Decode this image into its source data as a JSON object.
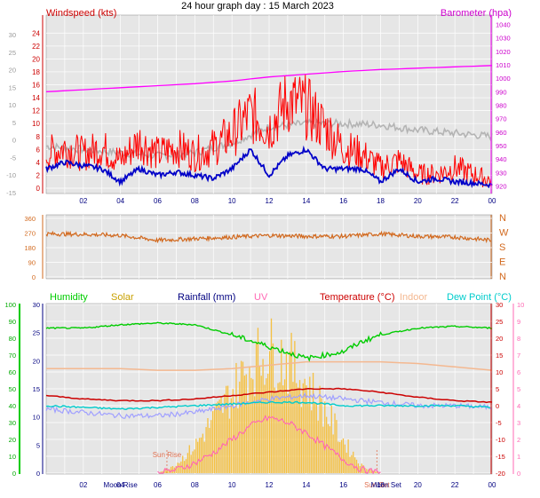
{
  "title": "24 hour graph day : 15 March 2023",
  "colors": {
    "plot_bg": "#e6e6e6",
    "grid": "#ffffff",
    "windspeed": "#ff0000",
    "wind_avg": "#0000c8",
    "gust_grey": "#b4b4b4",
    "barometer": "#ff00ff",
    "direction": "#d2691e",
    "humidity": "#00cc00",
    "solar": "#e6b400",
    "rainfall": "#000080",
    "uv": "#ff69b4",
    "temperature": "#cc0000",
    "indoor": "#f4b890",
    "dewpoint": "#00cccc",
    "lavender": "#a0a0ff"
  },
  "time_labels": [
    "02",
    "04",
    "06",
    "08",
    "10",
    "12",
    "14",
    "16",
    "18",
    "20",
    "22",
    "00"
  ],
  "chart_data": [
    {
      "type": "line",
      "panel": "wind-barometer",
      "ylabel_left": "Windspeed (kts)",
      "ylabel_right": "Barometer (hpa)",
      "left_ticks": [
        "24",
        "22",
        "20",
        "18",
        "16",
        "14",
        "12",
        "10",
        "8",
        "6",
        "4",
        "2",
        "0"
      ],
      "left_inner_ticks": [
        "30",
        "25",
        "20",
        "15",
        "10",
        "5",
        "0",
        "-5",
        "-10",
        "-15"
      ],
      "right_ticks": [
        "1040",
        "1030",
        "1020",
        "1010",
        "1000",
        "990",
        "980",
        "970",
        "960",
        "950",
        "940",
        "930",
        "920"
      ],
      "ylim_left": [
        0,
        25
      ],
      "ylim_right": [
        915,
        1045
      ],
      "series": [
        {
          "key": "barometer",
          "x": [
            0,
            2,
            4,
            6,
            8,
            10,
            12,
            14,
            16,
            18,
            20,
            22,
            24
          ],
          "y": [
            990,
            991.5,
            993,
            994.5,
            996,
            998,
            1001,
            1003,
            1005,
            1006.5,
            1007.5,
            1008.5,
            1009.5
          ]
        },
        {
          "key": "gust",
          "x": [
            0,
            2,
            4,
            6,
            8,
            10,
            12,
            14,
            16,
            18,
            20,
            22,
            24
          ],
          "y": [
            6.5,
            6,
            5.5,
            5,
            5.5,
            7,
            9.5,
            10,
            10,
            9.8,
            9,
            8.5,
            8
          ]
        },
        {
          "key": "windspeed",
          "x": [
            0,
            1,
            2,
            3,
            4,
            5,
            6,
            7,
            8,
            9,
            10,
            11,
            12,
            13,
            14,
            15,
            16,
            17,
            18,
            19,
            20,
            21,
            22,
            23,
            24
          ],
          "y": [
            5,
            6,
            5,
            6,
            4,
            7,
            5,
            6,
            5,
            6,
            8,
            11,
            9,
            13,
            12,
            9,
            6,
            5,
            3,
            4,
            2,
            2,
            3,
            2,
            1
          ]
        },
        {
          "key": "wind_avg",
          "x": [
            0,
            1,
            2,
            3,
            4,
            5,
            6,
            7,
            8,
            9,
            10,
            11,
            12,
            13,
            14,
            15,
            16,
            17,
            18,
            19,
            20,
            21,
            22,
            23,
            24
          ],
          "y": [
            3,
            4,
            3.5,
            3,
            1,
            3,
            2,
            2.5,
            2,
            1.5,
            3,
            6,
            2,
            5,
            6,
            3,
            3,
            3,
            1,
            3,
            1,
            1.5,
            1,
            0.8,
            0.5
          ]
        }
      ]
    },
    {
      "type": "scatter",
      "panel": "wind-direction",
      "left_ticks": [
        "360",
        "270",
        "180",
        "90",
        "0"
      ],
      "right_ticks": [
        "N",
        "W",
        "S",
        "E",
        "N"
      ],
      "ylim": [
        0,
        360
      ],
      "series": [
        {
          "key": "direction",
          "x": [
            0,
            2,
            4,
            6,
            8,
            10,
            12,
            14,
            16,
            18,
            20,
            22,
            24
          ],
          "y": [
            265,
            262,
            255,
            225,
            235,
            245,
            255,
            250,
            250,
            265,
            250,
            245,
            225
          ]
        }
      ]
    },
    {
      "type": "line",
      "panel": "multi",
      "legend": [
        "Humidity",
        "Solar",
        "Rainfall (mm)",
        "UV",
        "Temperature (°C)",
        "Indoor",
        "Dew Point (°C)"
      ],
      "left_humidity_ticks": [
        "100",
        "90",
        "80",
        "70",
        "60",
        "50",
        "40",
        "30",
        "20",
        "10",
        "0"
      ],
      "left_rain_ticks": [
        "30",
        "25",
        "20",
        "15",
        "10",
        "5",
        "0"
      ],
      "right_temp_ticks": [
        "30",
        "25",
        "20",
        "15",
        "10",
        "5",
        "0",
        "-5",
        "-10",
        "-15",
        "-20"
      ],
      "right_uv_ticks": [
        "10",
        "9",
        "8",
        "7",
        "6",
        "5",
        "4",
        "3",
        "2",
        "1",
        "0"
      ],
      "bottom_markers": [
        "Moon Rise",
        "Sun Rise",
        "Sun Set",
        "Moon Set"
      ],
      "series": [
        {
          "key": "humidity",
          "x": [
            0,
            2,
            4,
            6,
            8,
            10,
            12,
            14,
            16,
            17,
            18,
            20,
            22,
            24
          ],
          "y": [
            86,
            86,
            88,
            89,
            88,
            82,
            75,
            68,
            72,
            78,
            82,
            86,
            87,
            86
          ]
        },
        {
          "key": "indoor",
          "x": [
            0,
            2,
            4,
            6,
            8,
            10,
            12,
            14,
            16,
            18,
            20,
            22,
            24
          ],
          "y": [
            11,
            11,
            11,
            10.5,
            10.5,
            11,
            12,
            13,
            13,
            13,
            12.5,
            11.5,
            10.5
          ]
        },
        {
          "key": "temperature",
          "x": [
            0,
            2,
            4,
            6,
            8,
            10,
            12,
            14,
            16,
            17,
            18,
            20,
            22,
            24
          ],
          "y": [
            3,
            2,
            1.5,
            1.5,
            2,
            3,
            4,
            5,
            5,
            4.5,
            4,
            2.5,
            1.5,
            1
          ]
        },
        {
          "key": "lavender",
          "x": [
            0,
            2,
            4,
            6,
            8,
            10,
            12,
            14,
            16,
            18,
            20,
            22,
            24
          ],
          "y": [
            -1,
            -2,
            -3,
            -3,
            -2,
            0,
            2,
            3,
            2,
            1,
            0,
            0,
            -0.5
          ]
        },
        {
          "key": "dewpoint",
          "x": [
            0,
            2,
            4,
            6,
            8,
            10,
            12,
            14,
            16,
            18,
            20,
            22,
            24
          ],
          "y": [
            0,
            -0.5,
            -1,
            -0.5,
            0,
            0.5,
            1,
            1,
            0,
            0,
            0,
            0,
            -0.5
          ]
        },
        {
          "key": "solar",
          "x": [
            6,
            7,
            8,
            9,
            10,
            11,
            12,
            13,
            14,
            15,
            16,
            17,
            18
          ],
          "y": [
            0,
            50,
            150,
            300,
            450,
            600,
            680,
            620,
            500,
            350,
            180,
            40,
            0
          ]
        },
        {
          "key": "uv",
          "x": [
            6,
            7,
            8,
            9,
            10,
            11,
            12,
            13,
            14,
            15,
            16,
            17,
            18
          ],
          "y": [
            0,
            0.2,
            0.6,
            1.2,
            2,
            2.8,
            3.3,
            3.0,
            2.4,
            1.6,
            0.8,
            0.2,
            0
          ]
        }
      ]
    }
  ]
}
